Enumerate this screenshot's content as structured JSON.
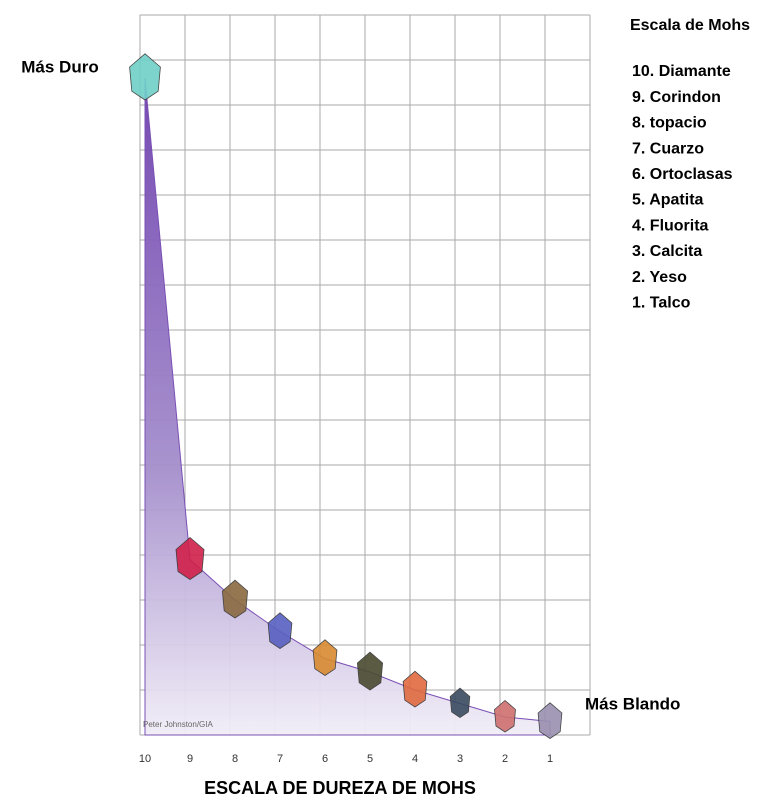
{
  "chart_data": {
    "type": "area",
    "title": "ESCALA DE DUREZA DE MOHS",
    "categories": [
      "10",
      "9",
      "8",
      "7",
      "6",
      "5",
      "4",
      "3",
      "2",
      "1"
    ],
    "values": [
      14.6,
      3.9,
      3.0,
      2.3,
      1.7,
      1.4,
      1.0,
      0.7,
      0.4,
      0.3
    ],
    "ylim": [
      0,
      16
    ],
    "yticks": [
      0,
      1,
      2,
      3,
      4,
      5,
      6,
      7,
      8,
      9,
      10,
      11,
      12,
      13,
      14,
      15,
      16
    ],
    "grid": true,
    "color": "#7a50b4",
    "annotations": {
      "top": "Más Duro",
      "bottom": "Más Blando",
      "credit": "Peter Johnston/GIA"
    },
    "legend": {
      "title": "Escala de Mohs",
      "items": [
        "10. Diamante",
        "9. Corindon",
        "8. topacio",
        "7. Cuarzo",
        "6. Ortoclasas",
        "5. Apatita",
        "4. Fluorita",
        "3. Calcita",
        "2. Yeso",
        "1. Talco"
      ]
    }
  }
}
